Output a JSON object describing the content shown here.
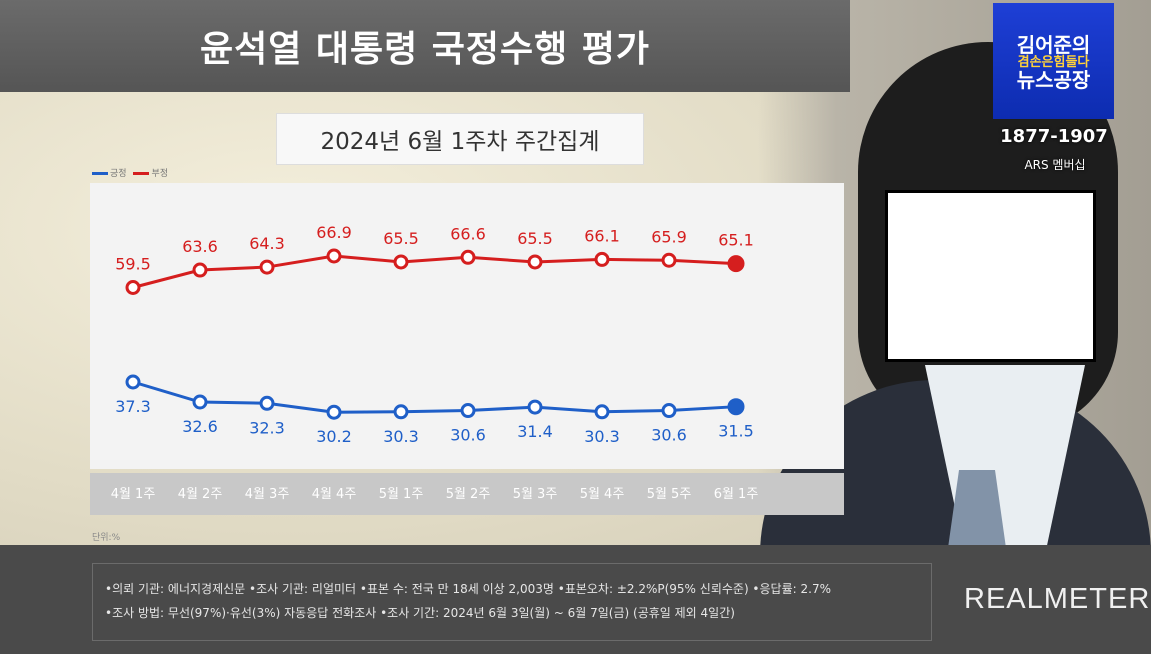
{
  "title": "윤석열 대통령 국정수행 평가",
  "subtitle": "2024년 6월 1주차 주간집계",
  "legend": [
    "긍정",
    "부정"
  ],
  "unit": "단위:%",
  "colors": {
    "positive": "#1f5fc8",
    "negative": "#d51e1e"
  },
  "chart_data": {
    "type": "line",
    "categories": [
      "4월 1주",
      "4월 2주",
      "4월 3주",
      "4월 4주",
      "5월 1주",
      "5월 2주",
      "5월 3주",
      "5월 4주",
      "5월 5주",
      "6월 1주"
    ],
    "series": [
      {
        "name": "부정",
        "values": [
          59.5,
          63.6,
          64.3,
          66.9,
          65.5,
          66.6,
          65.5,
          66.1,
          65.9,
          65.1
        ]
      },
      {
        "name": "긍정",
        "values": [
          37.3,
          32.6,
          32.3,
          30.2,
          30.3,
          30.6,
          31.4,
          30.3,
          30.6,
          31.5
        ]
      }
    ],
    "grid": false
  },
  "footer": {
    "line1": "•의뢰 기관: 에너지경제신문 •조사 기관: 리얼미터 •표본 수: 전국 만 18세 이상 2,003명 •표본오차: ±2.2%P(95% 신뢰수준) •응답률: 2.7%",
    "line2": "•조사 방법: 무선(97%)·유선(3%) 자동응답 전화조사 •조사 기간: 2024년 6월 3일(월) ~ 6월 7일(금) (공휴일 제외 4일간)"
  },
  "brand": "REALMETER",
  "logo": {
    "line1": "김어준의",
    "line2": "겸손은힘들다",
    "line3": "뉴스공장"
  },
  "phone": "1877-1907",
  "ars": "ARS 멤버십"
}
